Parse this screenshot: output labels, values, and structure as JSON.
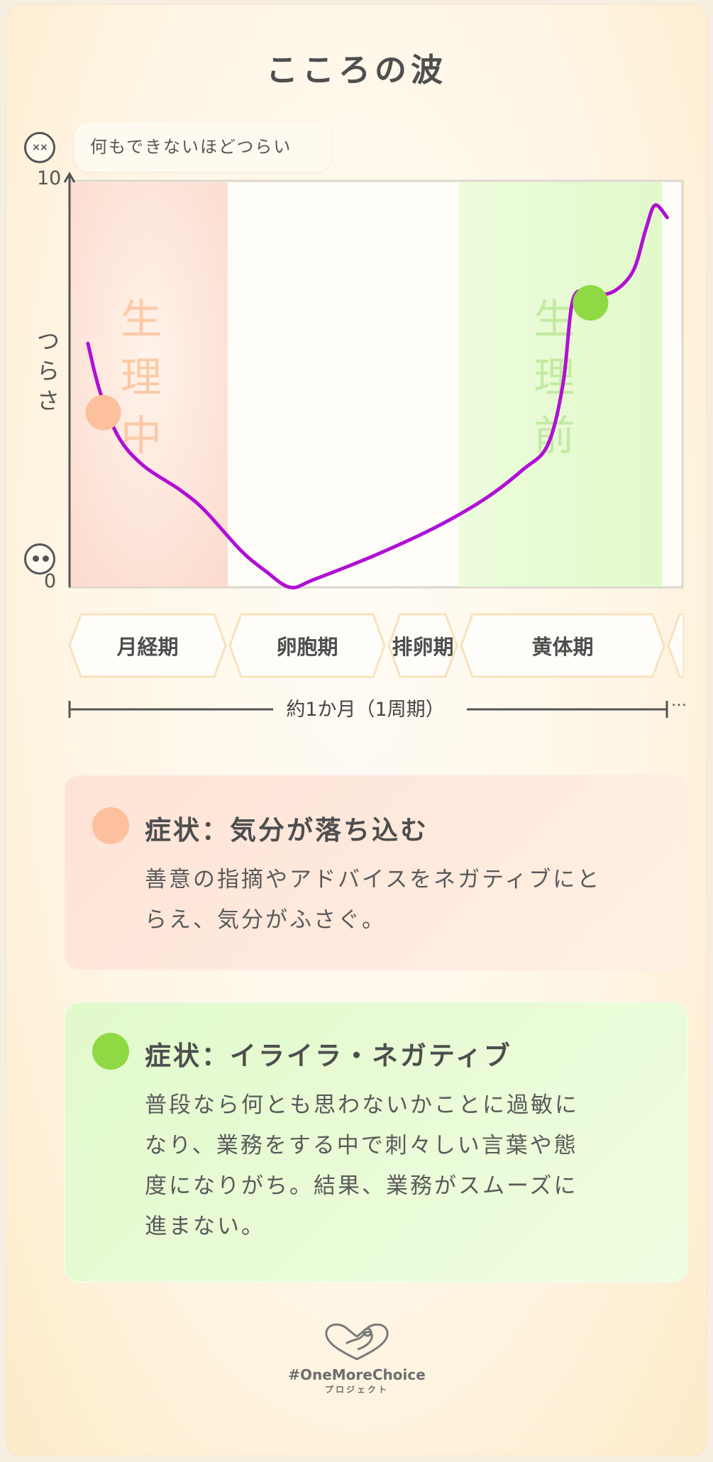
{
  "title": "こころの波",
  "colors": {
    "line": "#b10fd6",
    "menstrual_band": "#fde3d8",
    "menstrual_text": "#fcc9a6",
    "pre_band": "#e6fbd2",
    "pre_text": "#c3eaa3",
    "marker_menstrual": "#fcc09c",
    "marker_pre": "#8fd944",
    "axis": "#555555"
  },
  "chart_data": {
    "type": "line",
    "title": "こころの波",
    "xlabel": "約1か月（1周期）",
    "ylabel": "つらさ",
    "ylim": [
      0,
      10
    ],
    "xlim": [
      0,
      100
    ],
    "y_ticks": [
      "0",
      "10"
    ],
    "top_annotation": "何もできないほどつらい",
    "top_icon": "dizzy-face-icon",
    "bottom_icon": "calm-face-icon",
    "grid": false,
    "bands": [
      {
        "label": "生理中",
        "x": [
          0,
          25.7
        ],
        "color": "#fde3d8"
      },
      {
        "label": "生理前",
        "x": [
          63.4,
          96.6
        ],
        "color": "#e6fbd2"
      }
    ],
    "series": [
      {
        "x": [
          3,
          5,
          8,
          12,
          18,
          22,
          28,
          32,
          36,
          40,
          50,
          60,
          68,
          74,
          78,
          80.5,
          82,
          84,
          86,
          89,
          92,
          94,
          95.5,
          97.5
        ],
        "values": [
          6.0,
          4.8,
          3.7,
          3.0,
          2.4,
          1.9,
          0.9,
          0.4,
          0.0,
          0.2,
          0.8,
          1.5,
          2.2,
          2.9,
          3.5,
          5.0,
          7.0,
          7.3,
          7.2,
          7.3,
          7.8,
          8.8,
          9.4,
          9.1
        ],
        "color": "#b10fd6"
      }
    ],
    "markers": [
      {
        "x": 5.5,
        "y": 4.3,
        "color": "#fcc09c"
      },
      {
        "x": 85,
        "y": 7.0,
        "color": "#8fd944"
      }
    ],
    "phases": [
      "月経期",
      "卵胞期",
      "排卵期",
      "黄体期"
    ]
  },
  "cards": [
    {
      "title": "症状：気分が落ち込む",
      "lines": [
        "善意の指摘やアドバイスをネガティブにと",
        "らえ、気分がふさぐ。"
      ]
    },
    {
      "title": "症状：イライラ・ネガティブ",
      "lines": [
        "普段なら何とも思わないかことに過敏に",
        "なり、業務をする中で刺々しい言葉や態",
        "度になりがち。結果、業務がスムーズに",
        "進まない。"
      ]
    }
  ],
  "footer": {
    "brand": "#OneMoreChoice",
    "sub": "プロジェクト"
  }
}
